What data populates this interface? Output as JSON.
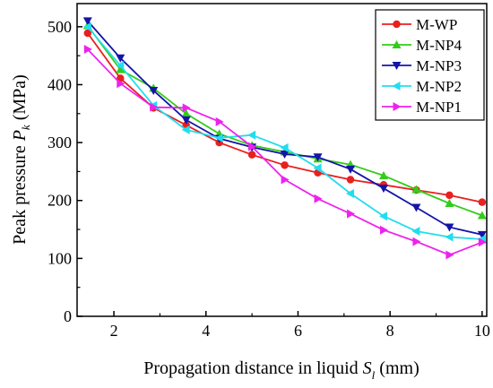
{
  "chart_data": {
    "type": "line",
    "xlabel_main": "Propagation distance in liquid ",
    "xlabel_var": "S",
    "xlabel_sub": "l",
    "xlabel_unit": " (mm)",
    "ylabel_main": "Peak pressure ",
    "ylabel_var": "P",
    "ylabel_sub": "k",
    "ylabel_unit": " (MPa)",
    "xlim": [
      1.2,
      10.1
    ],
    "ylim": [
      0,
      540
    ],
    "xticks": [
      2,
      4,
      6,
      8,
      10
    ],
    "yticks": [
      0,
      100,
      200,
      300,
      400,
      500
    ],
    "legend_position": "top-right",
    "grid": false,
    "x": [
      1.43,
      2.14,
      2.86,
      3.57,
      4.29,
      5.0,
      5.71,
      6.43,
      7.14,
      7.86,
      8.57,
      9.29,
      10.0
    ],
    "series": [
      {
        "name": "M-WP",
        "color": "#e8201f",
        "marker": "circle",
        "values": [
          489,
          411,
          360,
          330,
          300,
          279,
          261,
          248,
          236,
          227,
          218,
          209,
          197
        ]
      },
      {
        "name": "M-NP4",
        "color": "#33cc1a",
        "marker": "triangle-up",
        "values": [
          502,
          426,
          394,
          350,
          315,
          295,
          284,
          272,
          262,
          243,
          219,
          195,
          174
        ]
      },
      {
        "name": "M-NP3",
        "color": "#1414a8",
        "marker": "triangle-down",
        "values": [
          510,
          446,
          390,
          339,
          307,
          292,
          280,
          275,
          254,
          221,
          188,
          154,
          141
        ]
      },
      {
        "name": "M-NP2",
        "color": "#22ddee",
        "marker": "triangle-left",
        "values": [
          500,
          433,
          364,
          322,
          308,
          313,
          291,
          256,
          212,
          173,
          147,
          137,
          133
        ]
      },
      {
        "name": "M-NP1",
        "color": "#ee22ee",
        "marker": "triangle-right",
        "values": [
          461,
          402,
          361,
          360,
          336,
          293,
          236,
          203,
          177,
          149,
          129,
          106,
          128
        ]
      }
    ]
  }
}
